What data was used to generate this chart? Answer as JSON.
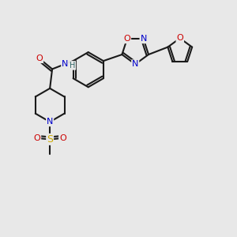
{
  "bg_color": "#e8e8e8",
  "bond_color": "#1a1a1a",
  "bond_width": 1.5,
  "atom_colors": {
    "C": "#1a1a1a",
    "N": "#0000cc",
    "O": "#cc0000",
    "S": "#ccaa00",
    "H": "#336666"
  },
  "font_size": 8,
  "fig_size": [
    3.0,
    3.0
  ],
  "dpi": 100
}
